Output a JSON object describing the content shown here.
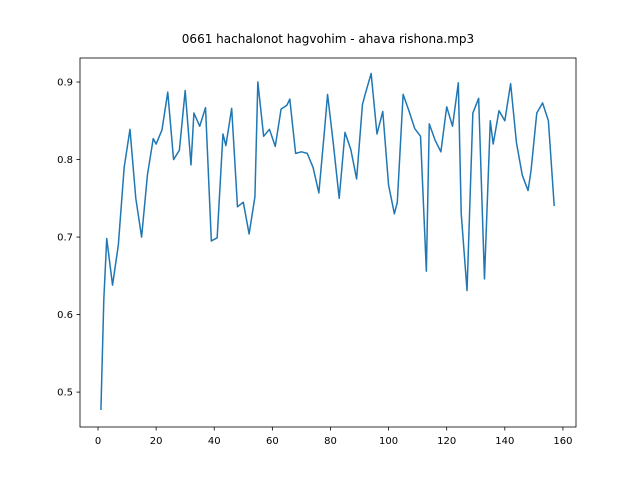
{
  "chart_data": {
    "type": "line",
    "title": "0661 hachalonot hagvohim - ahava rishona.mp3",
    "x": [
      1,
      2,
      3,
      5,
      7,
      9,
      11,
      13,
      15,
      17,
      19,
      20,
      22,
      24,
      26,
      28,
      30,
      32,
      33,
      35,
      37,
      39,
      41,
      43,
      44,
      46,
      48,
      50,
      52,
      54,
      55,
      57,
      59,
      61,
      63,
      65,
      66,
      68,
      70,
      72,
      74,
      76,
      78,
      79,
      81,
      83,
      85,
      87,
      89,
      91,
      92,
      94,
      96,
      98,
      100,
      102,
      103,
      105,
      107,
      109,
      111,
      113,
      114,
      116,
      118,
      120,
      122,
      124,
      125,
      127,
      129,
      131,
      133,
      135,
      136,
      138,
      140,
      142,
      144,
      146,
      148,
      149,
      151,
      153,
      155,
      157
    ],
    "series": [
      {
        "color": "#1f77b4",
        "values": [
          0.477,
          0.62,
          0.698,
          0.638,
          0.69,
          0.79,
          0.839,
          0.75,
          0.7,
          0.78,
          0.827,
          0.82,
          0.838,
          0.887,
          0.8,
          0.812,
          0.889,
          0.793,
          0.86,
          0.843,
          0.867,
          0.695,
          0.699,
          0.833,
          0.818,
          0.866,
          0.739,
          0.745,
          0.704,
          0.752,
          0.9,
          0.83,
          0.839,
          0.817,
          0.865,
          0.87,
          0.878,
          0.808,
          0.81,
          0.808,
          0.79,
          0.757,
          0.84,
          0.884,
          0.82,
          0.75,
          0.835,
          0.813,
          0.775,
          0.871,
          0.885,
          0.911,
          0.833,
          0.862,
          0.767,
          0.73,
          0.745,
          0.884,
          0.863,
          0.84,
          0.83,
          0.656,
          0.846,
          0.825,
          0.81,
          0.868,
          0.843,
          0.899,
          0.73,
          0.631,
          0.86,
          0.879,
          0.646,
          0.85,
          0.82,
          0.863,
          0.85,
          0.898,
          0.822,
          0.78,
          0.76,
          0.785,
          0.86,
          0.873,
          0.85,
          0.74
        ]
      }
    ],
    "xlim": [
      -6.2,
      164.5
    ],
    "xticks": [
      0,
      20,
      40,
      60,
      80,
      100,
      120,
      140,
      160
    ],
    "ylim": [
      0.455,
      0.931
    ],
    "yticks": [
      0.5,
      0.6,
      0.7,
      0.8,
      0.9
    ]
  }
}
